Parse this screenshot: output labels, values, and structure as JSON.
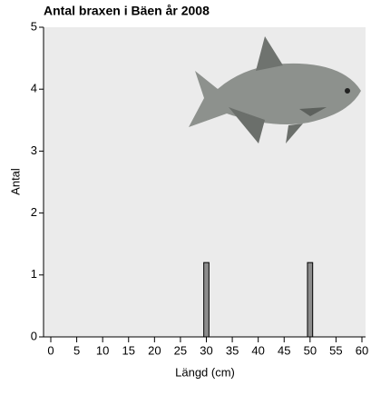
{
  "chart_data": {
    "type": "bar",
    "title": "Antal braxen i Bäen år 2008",
    "x_label": "Längd (cm)",
    "y_label": "Antal",
    "x": [
      30,
      50
    ],
    "values": [
      1.2,
      1.2
    ],
    "bar_width": 1,
    "color": "#8c8c8c",
    "xlim": [
      -1.4,
      60.7
    ],
    "xticks": [
      0,
      5,
      10,
      15,
      20,
      25,
      30,
      35,
      40,
      45,
      50,
      55,
      60
    ],
    "ylim": [
      0,
      5
    ],
    "yticks": [
      0,
      1,
      2,
      3,
      4,
      5
    ]
  }
}
